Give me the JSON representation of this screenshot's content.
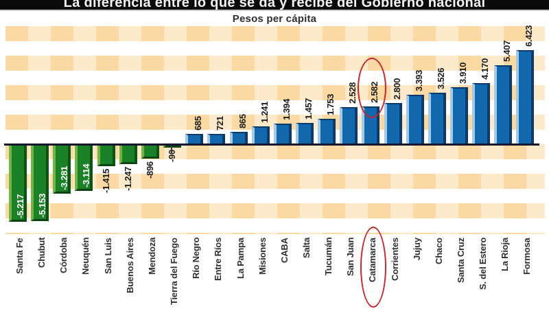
{
  "header": {
    "title": "La diferencia entre lo que se da y recibe del Gobierno nacional",
    "subtitle": "Pesos per cápita"
  },
  "chart_data": {
    "type": "bar",
    "title": "La diferencia entre lo que se da y recibe del Gobierno nacional",
    "subtitle": "Pesos per cápita",
    "xlabel": "",
    "ylabel": "Pesos per cápita",
    "baseline_value": 0,
    "grid": false,
    "legend": "none",
    "categories": [
      "Santa Fe",
      "Chubut",
      "Córdoba",
      "Neuquén",
      "San Luis",
      "Buenos Aires",
      "Mendoza",
      "Tierra del Fuego",
      "Río Negro",
      "Entre Ríos",
      "La Pampa",
      "Misiones",
      "CABA",
      "Salta",
      "Tucumán",
      "San Juan",
      "Catamarca",
      "Corrientes",
      "Jujuy",
      "Chaco",
      "Santa Cruz",
      "S. del Estero",
      "La Rioja",
      "Formosa"
    ],
    "values": [
      -5217,
      -5153,
      -3281,
      -3114,
      -1415,
      -1247,
      -896,
      -90,
      685,
      721,
      865,
      1241,
      1394,
      1457,
      1753,
      2528,
      2582,
      2800,
      3393,
      3526,
      3910,
      4170,
      5407,
      6423
    ],
    "value_labels": [
      "-5.217",
      "-5.153",
      "-3.281",
      "-3.114",
      "-1.415",
      "-1.247",
      "-896",
      "-90",
      "685",
      "721",
      "865",
      "1.241",
      "1.394",
      "1.457",
      "1.753",
      "2.528",
      "2.582",
      "2.800",
      "3.393",
      "3.526",
      "3.910",
      "4.170",
      "5.407",
      "6.423"
    ],
    "colors": {
      "positive_bar": "#1268ae",
      "positive_bar_light_edge": "#a6c9e7",
      "positive_bar_dark_edge": "#0d3a68",
      "negative_bar": "#1b8126",
      "negative_bar_light_edge": "#74b445",
      "negative_bar_dark_edge": "#0d5316",
      "baseline": "#16162e",
      "background_check_dark": "#fbd9a2",
      "background_check_light": "#fdeacb",
      "highlight_circle": "#c9252c"
    },
    "annotations": [
      {
        "type": "circle",
        "target": "value",
        "category": "Catamarca",
        "text": "2.582"
      },
      {
        "type": "circle",
        "target": "category_label",
        "category": "Catamarca",
        "text": "Catamarca"
      }
    ]
  }
}
